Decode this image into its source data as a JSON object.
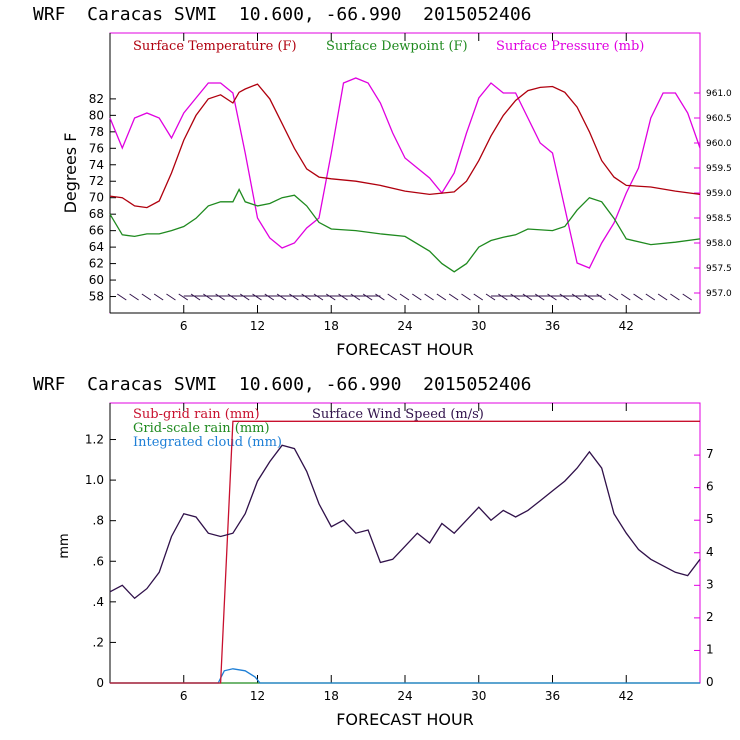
{
  "colors": {
    "temperature": "#b0000e",
    "dewpoint": "#1f8a1f",
    "pressure": "#e000e0",
    "subgrid_rain": "#c8102e",
    "gridscale_rain": "#1f8a1f",
    "cloud": "#1e7fd6",
    "wind": "#30114a"
  },
  "chart_data": [
    {
      "type": "line",
      "header": "WRF  Caracas SVMI  10.600, -66.990  2015052406",
      "xlabel": "FORECAST HOUR",
      "ylabel": "Degrees F",
      "xlim": [
        0,
        48
      ],
      "ylim": [
        56,
        90
      ],
      "y2lim": [
        956.6,
        962.2
      ],
      "xticks": [
        "6",
        "12",
        "18",
        "24",
        "30",
        "36",
        "42"
      ],
      "xtick_values": [
        6,
        12,
        18,
        24,
        30,
        36,
        42
      ],
      "yticks": [
        "58",
        "60",
        "62",
        "64",
        "66",
        "68",
        "70",
        "72",
        "74",
        "76",
        "78",
        "80",
        "82"
      ],
      "ytick_values": [
        58,
        60,
        62,
        64,
        66,
        68,
        70,
        72,
        74,
        76,
        78,
        80,
        82
      ],
      "y2ticks": [
        "957.0",
        "957.5",
        "958.0",
        "958.5",
        "959.0",
        "959.5",
        "960.0",
        "960.5",
        "961.0"
      ],
      "y2tick_values": [
        957.0,
        957.5,
        958.0,
        958.5,
        959.0,
        959.5,
        960.0,
        960.5,
        961.0
      ],
      "series": [
        {
          "name": "Surface Temperature (F)",
          "axis": "left",
          "x": [
            0,
            1,
            2,
            3,
            4,
            5,
            6,
            7,
            8,
            9,
            10,
            10.5,
            11,
            12,
            13,
            14,
            15,
            16,
            17,
            18,
            20,
            22,
            24,
            26,
            28,
            29,
            30,
            31,
            32,
            33,
            34,
            35,
            36,
            37,
            38,
            39,
            40,
            41,
            42,
            44,
            46,
            48
          ],
          "values": [
            70.2,
            70.0,
            69.0,
            68.8,
            69.6,
            73.0,
            77.0,
            80.0,
            82.0,
            82.5,
            81.5,
            82.8,
            83.2,
            83.8,
            82.0,
            79.0,
            76.0,
            73.5,
            72.5,
            72.3,
            72.0,
            71.5,
            70.8,
            70.4,
            70.7,
            72.0,
            74.5,
            77.5,
            80.0,
            81.8,
            83.0,
            83.4,
            83.5,
            82.8,
            81.0,
            78.0,
            74.5,
            72.5,
            71.5,
            71.3,
            70.8,
            70.4
          ]
        },
        {
          "name": "Surface Dewpoint (F)",
          "axis": "left",
          "x": [
            0,
            1,
            2,
            3,
            4,
            5,
            6,
            7,
            8,
            9,
            10,
            10.5,
            11,
            12,
            13,
            14,
            15,
            16,
            17,
            18,
            20,
            22,
            24,
            26,
            27,
            28,
            29,
            30,
            31,
            32,
            33,
            34,
            36,
            37,
            38,
            39,
            40,
            41,
            42,
            44,
            46,
            48
          ],
          "values": [
            68.0,
            65.5,
            65.3,
            65.6,
            65.6,
            66.0,
            66.5,
            67.5,
            69.0,
            69.5,
            69.5,
            71.0,
            69.5,
            69.0,
            69.3,
            70.0,
            70.3,
            69.0,
            67.0,
            66.2,
            66.0,
            65.6,
            65.3,
            63.5,
            62.0,
            61.0,
            62.0,
            64.0,
            64.8,
            65.2,
            65.5,
            66.2,
            66.0,
            66.5,
            68.5,
            70.0,
            69.5,
            67.5,
            65.0,
            64.3,
            64.6,
            65.0
          ]
        },
        {
          "name": "Surface Pressure (mb)",
          "axis": "right",
          "x": [
            0,
            1,
            2,
            3,
            4,
            5,
            6,
            7,
            8,
            9,
            10,
            11,
            12,
            13,
            14,
            15,
            16,
            17,
            18,
            19,
            20,
            21,
            22,
            23,
            24,
            25,
            26,
            27,
            28,
            29,
            30,
            31,
            32,
            33,
            34,
            35,
            36,
            37,
            38,
            39,
            40,
            41,
            42,
            43,
            44,
            45,
            46,
            47,
            48
          ],
          "values": [
            960.5,
            959.9,
            960.5,
            960.6,
            960.5,
            960.1,
            960.6,
            960.9,
            961.2,
            961.2,
            961.0,
            959.8,
            958.5,
            958.1,
            957.9,
            958.0,
            958.3,
            958.5,
            959.8,
            961.2,
            961.3,
            961.2,
            960.8,
            960.2,
            959.7,
            959.5,
            959.3,
            959.0,
            959.4,
            960.2,
            960.9,
            961.2,
            961.0,
            961.0,
            960.5,
            960.0,
            959.8,
            958.7,
            957.6,
            957.5,
            958.0,
            958.4,
            959.0,
            959.5,
            960.5,
            961.0,
            961.0,
            960.6,
            959.9
          ]
        }
      ]
    },
    {
      "type": "line",
      "header": "WRF  Caracas SVMI  10.600, -66.990  2015052406",
      "xlabel": "FORECAST HOUR",
      "ylabel": "mm",
      "xlim": [
        0,
        48
      ],
      "ylim": [
        0,
        1.38
      ],
      "y2lim": [
        0,
        8.6
      ],
      "xticks": [
        "6",
        "12",
        "18",
        "24",
        "30",
        "36",
        "42"
      ],
      "xtick_values": [
        6,
        12,
        18,
        24,
        30,
        36,
        42
      ],
      "yticks": [
        "0",
        ".2",
        ".4",
        ".6",
        ".8",
        "1.0",
        "1.2"
      ],
      "ytick_values": [
        0,
        0.2,
        0.4,
        0.6,
        0.8,
        1.0,
        1.2
      ],
      "y2ticks": [
        "0",
        "1",
        "2",
        "3",
        "4",
        "5",
        "6",
        "7"
      ],
      "y2tick_values": [
        0,
        1,
        2,
        3,
        4,
        5,
        6,
        7
      ],
      "series": [
        {
          "name": "Sub-grid rain (mm)",
          "axis": "left",
          "x": [
            0,
            9,
            10,
            48
          ],
          "values": [
            0,
            0,
            1.29,
            1.29
          ]
        },
        {
          "name": "Grid-scale rain (mm)",
          "axis": "left",
          "x": [
            0,
            48
          ],
          "values": [
            0,
            0
          ]
        },
        {
          "name": "Integrated cloud (mm)",
          "axis": "left",
          "x": [
            0,
            8.8,
            9.3,
            10,
            11,
            11.8,
            12.2,
            48
          ],
          "values": [
            0,
            0,
            0.06,
            0.07,
            0.06,
            0.03,
            0,
            0
          ]
        },
        {
          "name": "Surface Wind Speed (m/s)",
          "axis": "right",
          "x": [
            0,
            1,
            2,
            3,
            4,
            5,
            6,
            7,
            8,
            9,
            10,
            11,
            12,
            13,
            14,
            15,
            16,
            17,
            18,
            19,
            20,
            21,
            22,
            23,
            24,
            25,
            26,
            27,
            28,
            29,
            30,
            31,
            32,
            33,
            34,
            35,
            36,
            37,
            38,
            39,
            40,
            41,
            42,
            43,
            44,
            45,
            46,
            47,
            48
          ],
          "values": [
            2.8,
            3.0,
            2.6,
            2.9,
            3.4,
            4.5,
            5.2,
            5.1,
            4.6,
            4.5,
            4.6,
            5.2,
            6.2,
            6.8,
            7.3,
            7.2,
            6.5,
            5.5,
            4.8,
            5.0,
            4.6,
            4.7,
            3.7,
            3.8,
            4.2,
            4.6,
            4.3,
            4.9,
            4.6,
            5.0,
            5.4,
            5.0,
            5.3,
            5.1,
            5.3,
            5.6,
            5.9,
            6.2,
            6.6,
            7.1,
            6.6,
            5.2,
            4.6,
            4.1,
            3.8,
            3.6,
            3.4,
            3.3,
            3.8
          ]
        }
      ]
    }
  ]
}
